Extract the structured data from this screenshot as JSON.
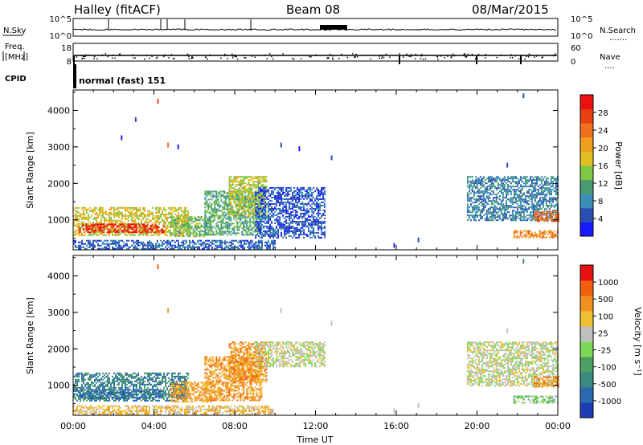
{
  "header": {
    "site": "Halley (fitACF)",
    "beam": "Beam 08",
    "date": "08/Mar/2015"
  },
  "status_panels": {
    "nsky_label": "N.Sky",
    "nsky_ticks": [
      "10^5",
      "10^0"
    ],
    "nsearch_label": "N.Search",
    "nsearch_ticks": [
      "10^5",
      "10^0"
    ],
    "freq_label": [
      "Freq.",
      "[MHz]"
    ],
    "freq_ticks": [
      "18",
      "8"
    ],
    "nave_label": "Nave",
    "nave_ticks": [
      "60",
      "0"
    ],
    "cpid_label": "CPID",
    "cpid_text": "normal (fast) 151"
  },
  "chart_data": [
    {
      "type": "heatmap",
      "name": "power",
      "ylabel": "Slant Range [km]",
      "xlabel": "",
      "xlim": [
        0,
        24
      ],
      "ylim": [
        180,
        4560
      ],
      "yticks": [
        "1000",
        "2000",
        "3000",
        "4000"
      ],
      "colorbar": {
        "label": "Power [dB]",
        "ticks": [
          "4",
          "8",
          "12",
          "16",
          "20",
          "24",
          "28"
        ],
        "colors": [
          "#1a1aff",
          "#2a4fb0",
          "#3a8fb8",
          "#4a9a70",
          "#7ec848",
          "#e0c020",
          "#f0a020",
          "#f07020",
          "#e84010",
          "#ee1010"
        ]
      },
      "patches": [
        {
          "t0": 0.0,
          "t1": 5.7,
          "r0": 600,
          "r1": 1350,
          "level": 0.55
        },
        {
          "t0": 0.3,
          "t1": 4.5,
          "r0": 650,
          "r1": 900,
          "level": 0.95
        },
        {
          "t0": 4.8,
          "t1": 6.8,
          "r0": 550,
          "r1": 1100,
          "level": 0.4
        },
        {
          "t0": 6.5,
          "t1": 9.3,
          "r0": 600,
          "r1": 1800,
          "level": 0.35
        },
        {
          "t0": 7.7,
          "t1": 9.6,
          "r0": 1100,
          "r1": 2200,
          "level": 0.5
        },
        {
          "t0": 9.0,
          "t1": 12.5,
          "r0": 500,
          "r1": 1900,
          "level": 0.12
        },
        {
          "t0": 19.5,
          "t1": 24.0,
          "r0": 1000,
          "r1": 2200,
          "level": 0.22
        },
        {
          "t0": 21.8,
          "t1": 24.0,
          "r0": 520,
          "r1": 720,
          "level": 0.72
        },
        {
          "t0": 22.8,
          "t1": 24.0,
          "r0": 950,
          "r1": 1250,
          "level": 0.8
        },
        {
          "t0": 0.0,
          "t1": 10.0,
          "r0": 200,
          "r1": 450,
          "level": 0.15
        }
      ],
      "scatter": [
        {
          "t": 2.4,
          "r": 3250,
          "level": 0.05
        },
        {
          "t": 3.1,
          "r": 3750,
          "level": 0.1
        },
        {
          "t": 4.7,
          "r": 3050,
          "level": 0.75
        },
        {
          "t": 5.2,
          "r": 3000,
          "level": 0.05
        },
        {
          "t": 4.2,
          "r": 4250,
          "level": 0.9
        },
        {
          "t": 10.3,
          "r": 3050,
          "level": 0.1
        },
        {
          "t": 12.8,
          "r": 2700,
          "level": 0.1
        },
        {
          "t": 11.2,
          "r": 2950,
          "level": 0.05
        },
        {
          "t": 21.5,
          "r": 2500,
          "level": 0.1
        },
        {
          "t": 22.3,
          "r": 4400,
          "level": 0.1
        },
        {
          "t": 15.9,
          "r": 300,
          "level": 0.05
        },
        {
          "t": 17.1,
          "r": 450,
          "level": 0.1
        }
      ]
    },
    {
      "type": "heatmap",
      "name": "velocity",
      "ylabel": "Slant Range [km]",
      "xlabel": "Time UT",
      "xlim": [
        0,
        24
      ],
      "ylim": [
        180,
        4560
      ],
      "yticks": [
        "1000",
        "2000",
        "3000",
        "4000"
      ],
      "xticks": [
        "00:00",
        "04:00",
        "08:00",
        "12:00",
        "16:00",
        "20:00",
        "00:00"
      ],
      "colorbar": {
        "label": "Velocity [m s⁻¹]",
        "ticks": [
          "1000",
          "500",
          "100",
          "25",
          "-25",
          "-100",
          "-500",
          "-1000"
        ],
        "colors": [
          "#1e3cb4",
          "#2a6ab0",
          "#3a8a80",
          "#4aa060",
          "#7ed858",
          "#c0c0c0",
          "#f0c030",
          "#f09020",
          "#f06010",
          "#e81010"
        ]
      },
      "patches": [
        {
          "t0": 0.0,
          "t1": 5.7,
          "r0": 600,
          "r1": 1350,
          "level": 0.2
        },
        {
          "t0": 0.3,
          "t1": 4.5,
          "r0": 650,
          "r1": 900,
          "level": 0.15
        },
        {
          "t0": 4.8,
          "t1": 6.8,
          "r0": 550,
          "r1": 1100,
          "level": 0.75
        },
        {
          "t0": 6.5,
          "t1": 9.3,
          "r0": 600,
          "r1": 1800,
          "level": 0.75
        },
        {
          "t0": 7.7,
          "t1": 9.6,
          "r0": 1100,
          "r1": 2200,
          "level": 0.78
        },
        {
          "t0": 9.0,
          "t1": 12.5,
          "r0": 1500,
          "r1": 2200,
          "level": 0.55
        },
        {
          "t0": 19.5,
          "t1": 24.0,
          "r0": 1000,
          "r1": 2200,
          "level": 0.55
        },
        {
          "t0": 21.8,
          "t1": 24.0,
          "r0": 520,
          "r1": 720,
          "level": 0.45
        },
        {
          "t0": 22.8,
          "t1": 24.0,
          "r0": 950,
          "r1": 1250,
          "level": 0.78
        },
        {
          "t0": 0.0,
          "t1": 10.0,
          "r0": 200,
          "r1": 450,
          "level": 0.65
        }
      ],
      "scatter": [
        {
          "t": 4.7,
          "r": 3050,
          "level": 0.82
        },
        {
          "t": 4.2,
          "r": 4250,
          "level": 0.9
        },
        {
          "t": 10.3,
          "r": 3050,
          "level": 0.5
        },
        {
          "t": 12.8,
          "r": 2700,
          "level": 0.5
        },
        {
          "t": 21.5,
          "r": 2500,
          "level": 0.5
        },
        {
          "t": 22.3,
          "r": 4400,
          "level": 0.2
        },
        {
          "t": 15.9,
          "r": 300,
          "level": 0.6
        },
        {
          "t": 17.1,
          "r": 450,
          "level": 0.6
        }
      ]
    }
  ]
}
